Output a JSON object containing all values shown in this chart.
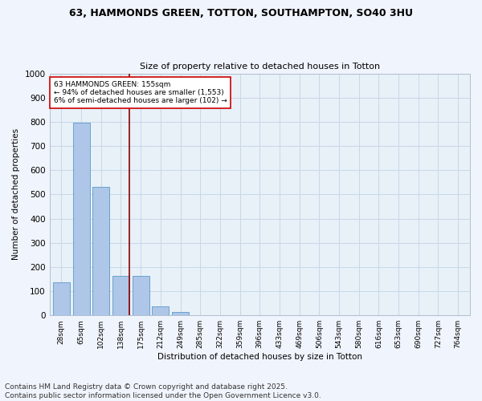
{
  "title_line1": "63, HAMMONDS GREEN, TOTTON, SOUTHAMPTON, SO40 3HU",
  "title_line2": "Size of property relative to detached houses in Totton",
  "xlabel": "Distribution of detached houses by size in Totton",
  "ylabel": "Number of detached properties",
  "categories": [
    "28sqm",
    "65sqm",
    "102sqm",
    "138sqm",
    "175sqm",
    "212sqm",
    "249sqm",
    "285sqm",
    "322sqm",
    "359sqm",
    "396sqm",
    "433sqm",
    "469sqm",
    "506sqm",
    "543sqm",
    "580sqm",
    "616sqm",
    "653sqm",
    "690sqm",
    "727sqm",
    "764sqm"
  ],
  "values": [
    135,
    795,
    530,
    163,
    162,
    37,
    13,
    0,
    0,
    0,
    0,
    0,
    0,
    0,
    0,
    0,
    0,
    0,
    0,
    0,
    0
  ],
  "bar_color": "#aec6e8",
  "bar_edge_color": "#5a9ac8",
  "vline_color": "#8b0000",
  "annotation_text": "63 HAMMONDS GREEN: 155sqm\n← 94% of detached houses are smaller (1,553)\n6% of semi-detached houses are larger (102) →",
  "annotation_box_color": "#ffffff",
  "annotation_box_edge_color": "#cc0000",
  "annotation_fontsize": 6.5,
  "ylim": [
    0,
    1000
  ],
  "yticks": [
    0,
    100,
    200,
    300,
    400,
    500,
    600,
    700,
    800,
    900,
    1000
  ],
  "grid_color": "#c8d8e8",
  "background_color": "#e8f0f8",
  "fig_background_color": "#f0f4fc",
  "footer_line1": "Contains HM Land Registry data © Crown copyright and database right 2025.",
  "footer_line2": "Contains public sector information licensed under the Open Government Licence v3.0.",
  "footer_fontsize": 6.5
}
